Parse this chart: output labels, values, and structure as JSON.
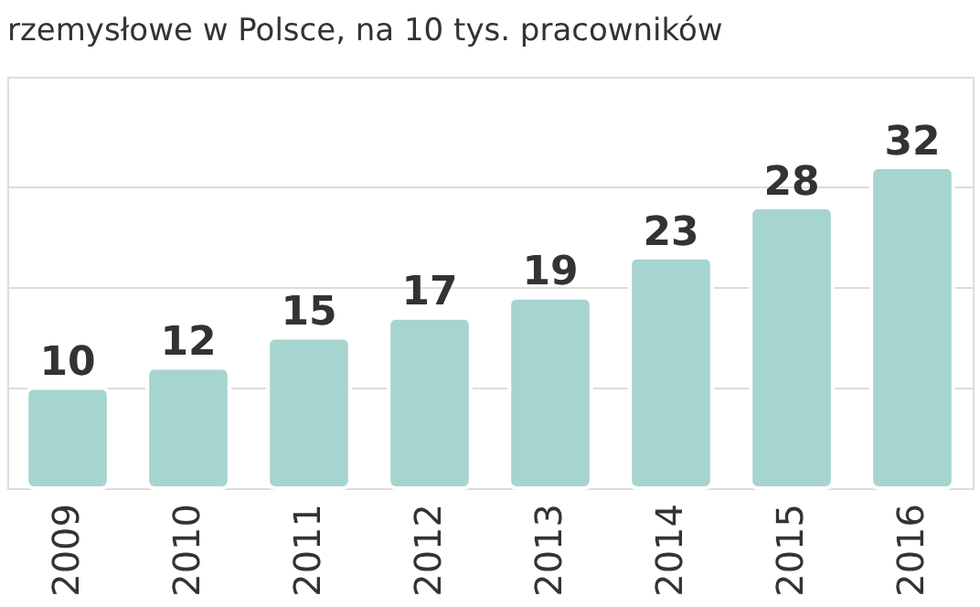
{
  "chart_data": {
    "type": "bar",
    "title": "rzemysłowe w Polsce, na 10 tys. pracowników",
    "categories": [
      "2009",
      "2010",
      "2011",
      "2012",
      "2013",
      "2014",
      "2015",
      "2016"
    ],
    "values": [
      10,
      12,
      15,
      17,
      19,
      23,
      28,
      32
    ],
    "color": "#a6d4cf",
    "ylim": [
      0,
      41
    ],
    "yticks": [
      {
        "value": 10,
        "label": null
      },
      {
        "value": 20,
        "label": null
      },
      {
        "value": 30,
        "label": null
      }
    ],
    "grid": "y",
    "data_labels": true,
    "tick_labels": "x"
  }
}
